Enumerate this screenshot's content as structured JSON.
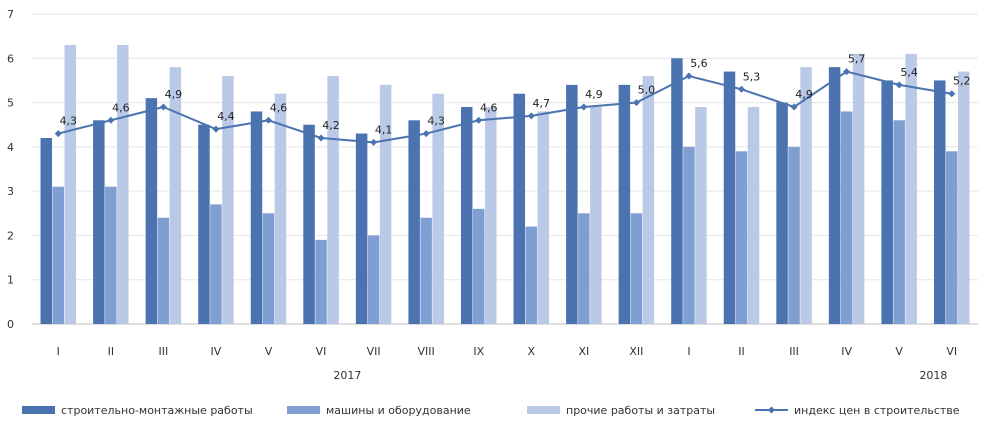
{
  "chart_data": {
    "type": "bar",
    "categories": [
      "I",
      "II",
      "III",
      "IV",
      "V",
      "VI",
      "VII",
      "VIII",
      "IX",
      "X",
      "XI",
      "XII",
      "I",
      "II",
      "III",
      "IV",
      "V",
      "VI"
    ],
    "groups": [
      {
        "label": "2017"
      },
      {
        "label": "2018"
      }
    ],
    "series": [
      {
        "name": "строительно-монтажные работы",
        "type": "bar",
        "color": "#4a73b0",
        "values": [
          4.2,
          4.6,
          5.1,
          4.5,
          4.8,
          4.5,
          4.3,
          4.6,
          4.9,
          5.2,
          5.4,
          5.4,
          6.0,
          5.7,
          5.0,
          5.8,
          5.5,
          5.5
        ]
      },
      {
        "name": "машины и оборудование",
        "type": "bar",
        "color": "#7f9ed2",
        "values": [
          3.1,
          3.1,
          2.4,
          2.7,
          2.5,
          1.9,
          2.0,
          2.4,
          2.6,
          2.2,
          2.5,
          2.5,
          4.0,
          3.9,
          4.0,
          4.8,
          4.6,
          3.9
        ]
      },
      {
        "name": "прочие работы и затраты",
        "type": "bar",
        "color": "#b9c9e6",
        "values": [
          6.3,
          6.3,
          5.8,
          5.6,
          5.2,
          5.6,
          5.4,
          5.2,
          4.9,
          4.8,
          4.9,
          5.6,
          4.9,
          4.9,
          5.8,
          6.1,
          6.1,
          5.7
        ]
      },
      {
        "name": "индекс цен в строительстве",
        "type": "line",
        "color": "#4a73b0",
        "values": [
          4.3,
          4.6,
          4.9,
          4.4,
          4.6,
          4.2,
          4.1,
          4.3,
          4.6,
          4.7,
          4.9,
          5.0,
          5.6,
          5.3,
          4.9,
          5.7,
          5.4,
          5.2
        ],
        "labels": [
          "4,3",
          "4,6",
          "4,9",
          "4,4",
          "4,6",
          "4,2",
          "4,1",
          "4,3",
          "4,6",
          "4,7",
          "4,9",
          "5,0",
          "5,6",
          "5,3",
          "4,9",
          "5,7",
          "5,4",
          "5,2"
        ]
      }
    ],
    "y_ticks": [
      "0",
      "1",
      "2",
      "3",
      "4",
      "5",
      "6",
      "7"
    ],
    "ylim": [
      0,
      7
    ],
    "grid": true,
    "legend_position": "bottom"
  }
}
